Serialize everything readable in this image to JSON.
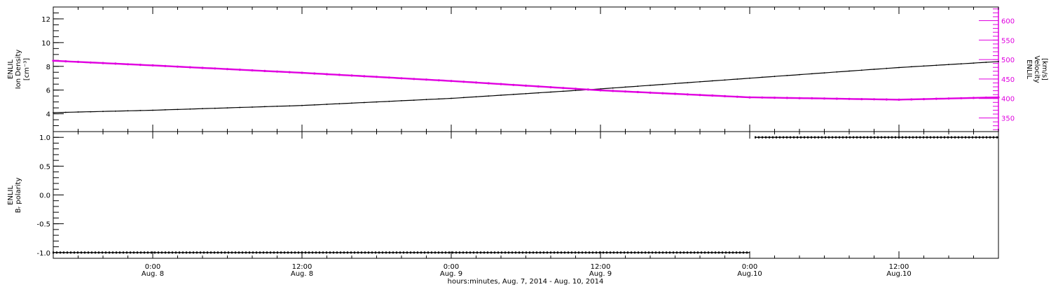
{
  "colors": {
    "density": "#000000",
    "velocity": "#e000e0",
    "polarity": "#000000",
    "axis": "#000000"
  },
  "time_axis": {
    "title": "hours:minutes, Aug.  7, 2014 - Aug. 10, 2014",
    "range": [
      "2014-08-07T16:00",
      "2014-08-10T20:00"
    ],
    "ticks": [
      {
        "x": "2014-08-08T00:00",
        "time": "0:00",
        "date": "Aug. 8"
      },
      {
        "x": "2014-08-08T12:00",
        "time": "12:00",
        "date": "Aug. 8"
      },
      {
        "x": "2014-08-09T00:00",
        "time": "0:00",
        "date": "Aug. 9"
      },
      {
        "x": "2014-08-09T12:00",
        "time": "12:00",
        "date": "Aug. 9"
      },
      {
        "x": "2014-08-10T00:00",
        "time": "0:00",
        "date": "Aug.10"
      },
      {
        "x": "2014-08-10T12:00",
        "time": "12:00",
        "date": "Aug.10"
      }
    ]
  },
  "chart_data": [
    {
      "type": "line",
      "panel": "top",
      "x_range": [
        "2014-08-07T16:00",
        "2014-08-10T20:00"
      ],
      "left_axis": {
        "label_lines": [
          "ENLIL",
          "Ion Density",
          "[cm⁻³]"
        ],
        "ylim": [
          2.5,
          13
        ],
        "ticks": [
          4,
          6,
          8,
          10,
          12
        ],
        "tick_labels": [
          "4",
          "6",
          "8",
          "10",
          "12"
        ]
      },
      "right_axis": {
        "label_lines": [
          "ENLIL",
          "Velocity",
          "[km/s]"
        ],
        "ylim": [
          315,
          635
        ],
        "ticks": [
          350,
          400,
          450,
          500,
          550,
          600
        ],
        "tick_labels": [
          "350",
          "400",
          "450",
          "500",
          "550",
          "600"
        ]
      },
      "series": [
        {
          "axis": "left",
          "x": [
            "2014-08-07T16:00",
            "2014-08-08T00:00",
            "2014-08-08T12:00",
            "2014-08-09T00:00",
            "2014-08-09T12:00",
            "2014-08-10T00:00",
            "2014-08-10T12:00",
            "2014-08-10T20:00"
          ],
          "values": [
            4.1,
            4.3,
            4.7,
            5.3,
            6.1,
            7.0,
            7.9,
            8.4
          ]
        },
        {
          "axis": "right",
          "x": [
            "2014-08-07T16:00",
            "2014-08-08T00:00",
            "2014-08-08T12:00",
            "2014-08-09T00:00",
            "2014-08-09T12:00",
            "2014-08-10T00:00",
            "2014-08-10T12:00",
            "2014-08-10T20:00"
          ],
          "values": [
            497,
            485,
            466,
            445,
            421,
            403,
            397,
            403
          ]
        }
      ]
    },
    {
      "type": "scatter",
      "panel": "bottom",
      "x_range": [
        "2014-08-07T16:00",
        "2014-08-10T20:00"
      ],
      "left_axis": {
        "label_lines": [
          "ENLIL",
          "Bᵣ polarity"
        ],
        "ylim": [
          -1.1,
          1.1
        ],
        "ticks": [
          -1.0,
          -0.5,
          0.0,
          0.5,
          1.0
        ],
        "tick_labels": [
          "-1.0",
          "-0.5",
          "0.0",
          "0.5",
          "1.0"
        ]
      },
      "series": [
        {
          "segments": [
            {
              "start": "2014-08-07T16:00",
              "end": "2014-08-10T00:00",
              "value": -1.0
            },
            {
              "start": "2014-08-10T00:00",
              "end": "2014-08-10T20:00",
              "value": 1.0
            }
          ]
        }
      ]
    }
  ]
}
